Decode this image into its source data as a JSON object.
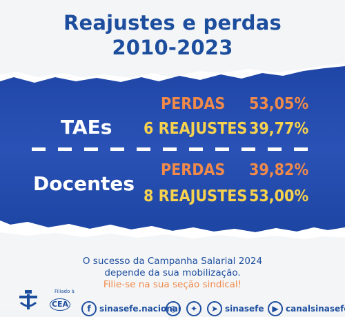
{
  "title": {
    "line1": "Reajustes e perdas",
    "line2": "2010-2023"
  },
  "groups": [
    {
      "name": "TAEs",
      "rows": [
        {
          "label": "PERDAS",
          "value": "53,05%"
        },
        {
          "label": "6 REAJUSTES",
          "value": "39,77%"
        }
      ]
    },
    {
      "name": "Docentes",
      "rows": [
        {
          "label": "PERDAS",
          "value": "39,82%"
        },
        {
          "label": "8 REAJUSTES",
          "value": "53,00%"
        }
      ]
    }
  ],
  "footer": {
    "line1": "O sucesso da Campanha Salarial 2024",
    "line2": "depende da sua mobilização.",
    "cta": "Filie-se na sua seção sindical!"
  },
  "affiliation": {
    "label": "Filiado à",
    "org": "CEA"
  },
  "social": {
    "facebook_handle": "sinasefe.nacional",
    "twitter_handle": "sinasefe",
    "youtube_handle": "canalsinasefe"
  },
  "colors": {
    "title_blue": "#1d4e9e",
    "band_blue": "#2348a8",
    "orange": "#f08a4b",
    "yellow": "#f7d24e"
  },
  "icons": [
    "facebook-icon",
    "instagram-icon",
    "twitter-icon",
    "telegram-icon",
    "youtube-icon"
  ]
}
